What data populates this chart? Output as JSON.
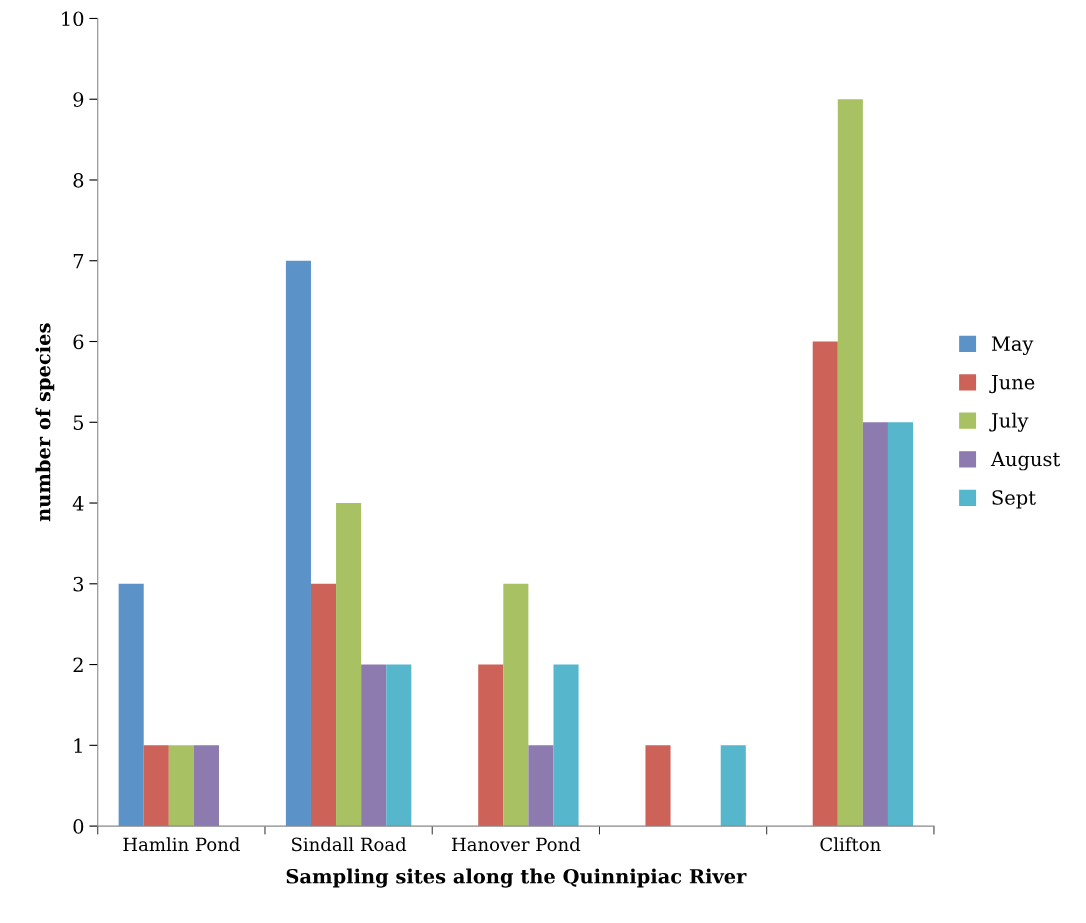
{
  "chart_data": {
    "type": "bar",
    "xlabel": "Sampling sites along the Quinnipiac River",
    "ylabel": "number of species",
    "categories": [
      "Hamlin Pond",
      "Sindall Road",
      "Hanover Pond",
      null,
      "Clifton"
    ],
    "series": [
      {
        "name": "May",
        "color": "#5b93c8",
        "values": [
          3,
          7,
          0,
          0,
          0
        ]
      },
      {
        "name": "June",
        "color": "#cc6258",
        "values": [
          1,
          3,
          2,
          1,
          6
        ]
      },
      {
        "name": "July",
        "color": "#a8c162",
        "values": [
          1,
          4,
          3,
          0,
          9
        ]
      },
      {
        "name": "August",
        "color": "#8d7bb0",
        "values": [
          1,
          2,
          1,
          0,
          5
        ]
      },
      {
        "name": "Sept",
        "color": "#55b6cc",
        "values": [
          0,
          2,
          2,
          1,
          5
        ]
      }
    ],
    "ylim": [
      0,
      10
    ],
    "yticks": [
      0,
      1,
      2,
      3,
      4,
      5,
      6,
      7,
      8,
      9,
      10
    ],
    "grid": false,
    "legend": "right"
  }
}
